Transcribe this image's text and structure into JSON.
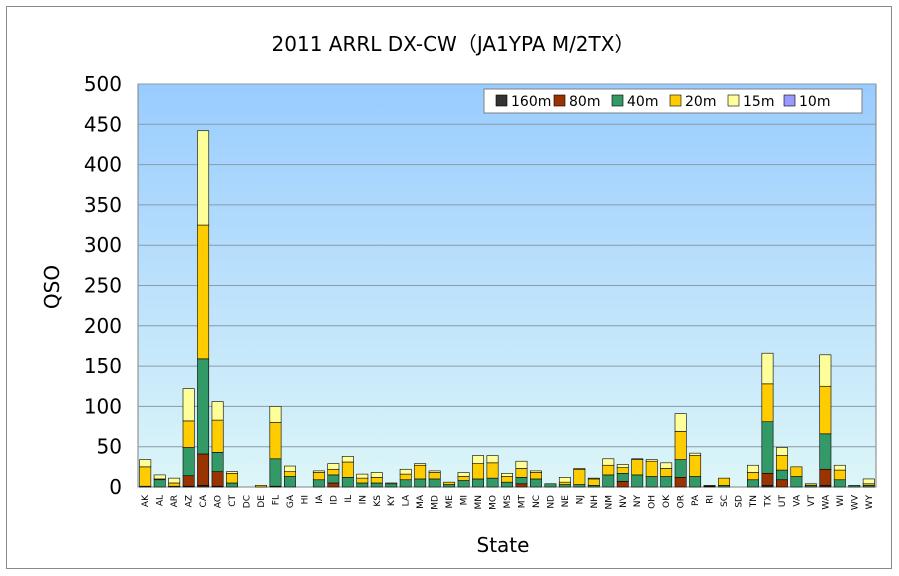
{
  "chart_data": {
    "type": "bar",
    "stacked": true,
    "title": "2011 ARRL DX-CW（JA1YPA M/2TX）",
    "xlabel": "State",
    "ylabel": "QSO",
    "ylim": [
      0,
      500
    ],
    "yticks": [
      0,
      50,
      100,
      150,
      200,
      250,
      300,
      350,
      400,
      450,
      500
    ],
    "grid": true,
    "legend_position": "top-right",
    "categories": [
      "AK",
      "AL",
      "AR",
      "AZ",
      "CA",
      "AO",
      "CT",
      "DC",
      "DE",
      "FL",
      "GA",
      "HI",
      "IA",
      "ID",
      "IL",
      "IN",
      "KS",
      "KY",
      "LA",
      "MA",
      "MD",
      "ME",
      "MI",
      "MN",
      "MO",
      "MS",
      "MT",
      "NC",
      "ND",
      "NE",
      "NJ",
      "NH",
      "NM",
      "NV",
      "NY",
      "OH",
      "OK",
      "OR",
      "PA",
      "RI",
      "SC",
      "SD",
      "TN",
      "TX",
      "UT",
      "VA",
      "VT",
      "WA",
      "WI",
      "WV",
      "WY"
    ],
    "series": [
      {
        "name": "160m",
        "color": "#333333",
        "values": [
          0,
          0,
          0,
          1,
          2,
          1,
          0,
          0,
          0,
          0,
          0,
          0,
          0,
          0,
          0,
          0,
          0,
          0,
          0,
          0,
          0,
          0,
          0,
          0,
          0,
          0,
          0,
          0,
          0,
          0,
          0,
          0,
          0,
          0,
          0,
          0,
          0,
          0,
          0,
          0,
          0,
          0,
          0,
          2,
          0,
          0,
          0,
          2,
          0,
          0,
          0
        ]
      },
      {
        "name": "80m",
        "color": "#993300",
        "values": [
          0,
          0,
          0,
          13,
          39,
          18,
          0,
          0,
          0,
          1,
          0,
          0,
          0,
          5,
          0,
          0,
          0,
          0,
          0,
          0,
          0,
          0,
          0,
          0,
          0,
          0,
          4,
          0,
          0,
          0,
          0,
          0,
          0,
          7,
          0,
          0,
          0,
          12,
          0,
          1,
          0,
          0,
          0,
          15,
          9,
          0,
          0,
          20,
          0,
          0,
          0
        ]
      },
      {
        "name": "40m",
        "color": "#339966",
        "values": [
          1,
          9,
          1,
          35,
          118,
          24,
          5,
          0,
          0,
          34,
          13,
          0,
          9,
          10,
          12,
          5,
          5,
          4,
          9,
          10,
          10,
          3,
          8,
          10,
          11,
          6,
          8,
          10,
          4,
          3,
          3,
          2,
          15,
          10,
          15,
          13,
          13,
          22,
          13,
          1,
          2,
          0,
          9,
          64,
          12,
          13,
          2,
          44,
          9,
          2,
          2
        ]
      },
      {
        "name": "20m",
        "color": "#ffcc00",
        "values": [
          24,
          1,
          4,
          33,
          166,
          40,
          12,
          0,
          2,
          45,
          6,
          0,
          9,
          7,
          19,
          6,
          7,
          0,
          7,
          17,
          8,
          3,
          5,
          19,
          19,
          7,
          11,
          8,
          0,
          3,
          19,
          8,
          12,
          7,
          19,
          19,
          10,
          35,
          26,
          0,
          9,
          0,
          9,
          47,
          18,
          12,
          2,
          59,
          12,
          0,
          2
        ]
      },
      {
        "name": "15m",
        "color": "#ffff99",
        "values": [
          9,
          5,
          6,
          40,
          117,
          23,
          2,
          0,
          0,
          20,
          7,
          0,
          2,
          7,
          7,
          5,
          6,
          1,
          6,
          2,
          2,
          0,
          5,
          10,
          9,
          4,
          9,
          2,
          0,
          6,
          1,
          1,
          8,
          4,
          1,
          2,
          7,
          22,
          3,
          0,
          0,
          0,
          9,
          38,
          10,
          0,
          0,
          39,
          6,
          0,
          6
        ]
      },
      {
        "name": "10m",
        "color": "#9999ff",
        "values": [
          0,
          0,
          0,
          0,
          0,
          0,
          0,
          0,
          0,
          0,
          0,
          0,
          0,
          0,
          0,
          0,
          0,
          0,
          0,
          0,
          0,
          0,
          0,
          0,
          0,
          0,
          0,
          0,
          0,
          0,
          0,
          0,
          0,
          0,
          0,
          0,
          0,
          0,
          0,
          0,
          0,
          0,
          0,
          0,
          0,
          0,
          0,
          0,
          0,
          0,
          0
        ]
      }
    ]
  },
  "colors": {
    "plot_bg_top": "#99ccff",
    "plot_bg_bottom": "#ddf6f8",
    "grid": "#8a9aa8"
  }
}
